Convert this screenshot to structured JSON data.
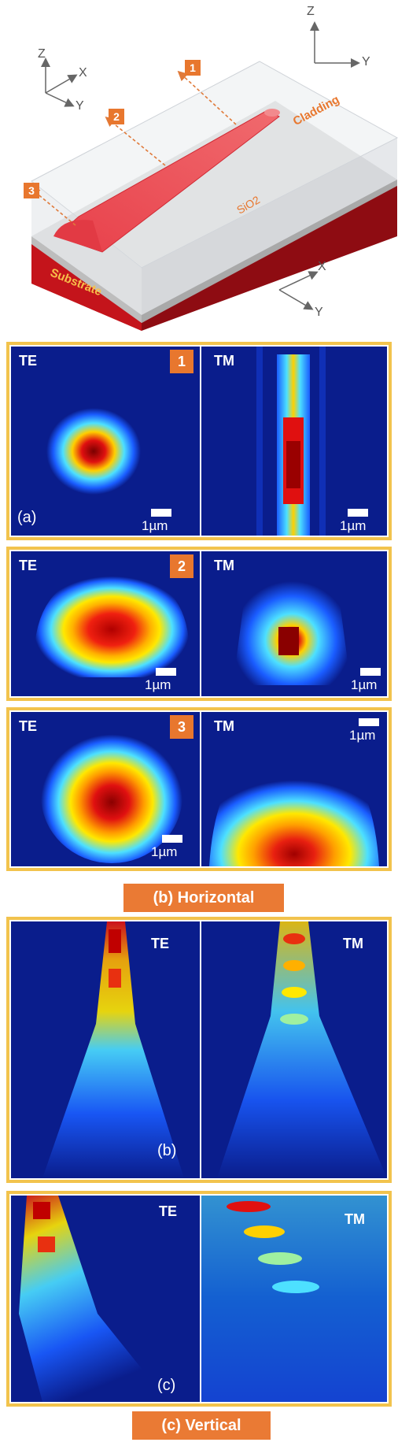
{
  "schematic": {
    "axes_top_left": {
      "z": "Z",
      "x": "X",
      "y": "Y"
    },
    "axes_top_right": {
      "z": "Z",
      "y": "Y"
    },
    "axes_bottom_right": {
      "x": "X",
      "y": "Y"
    },
    "labels": {
      "cladding": "Cladding",
      "sio2": "SiO2",
      "substrate": "Substrate"
    },
    "markers": [
      "1",
      "2",
      "3"
    ]
  },
  "horizontal": {
    "panels": [
      {
        "marker": "1",
        "te": "TE",
        "tm": "TM",
        "sub": "(a)",
        "scale_te": "1µm",
        "scale_tm": "1µm"
      },
      {
        "marker": "2",
        "te": "TE",
        "tm": "TM",
        "sub": "",
        "scale_te": "1µm",
        "scale_tm": "1µm"
      },
      {
        "marker": "3",
        "te": "TE",
        "tm": "TM",
        "sub": "",
        "scale_te": "1µm",
        "scale_tm": "1µm"
      }
    ],
    "caption": "(b) Horizontal"
  },
  "vertical": {
    "panels": [
      {
        "te": "TE",
        "tm": "TM",
        "sub": "(b)"
      },
      {
        "te": "TE",
        "tm": "TM",
        "sub": "(c)"
      }
    ],
    "caption": "(c) Vertical"
  },
  "colors": {
    "accent": "#e8772e",
    "frame": "#f2c34d",
    "field_bg": "#0a1d8c",
    "substrate": "#c4141b"
  }
}
